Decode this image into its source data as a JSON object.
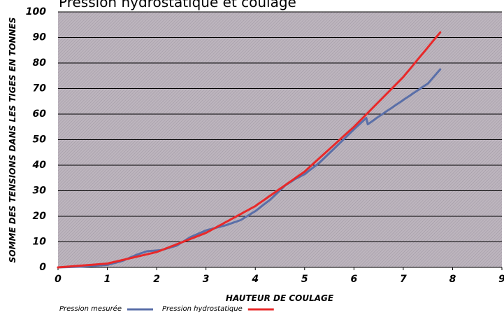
{
  "chart_data": {
    "type": "line",
    "title": "Pression hydrostatique et coulage",
    "x_label": "HAUTEUR DE COULAGE",
    "y_label": "SOMME DES TENSIONS DANS LES TIGES EN TONNES",
    "xlim": [
      0,
      9
    ],
    "ylim": [
      0,
      100
    ],
    "xticks": [
      0,
      1,
      2,
      3,
      4,
      5,
      6,
      7,
      8,
      9
    ],
    "yticks": [
      0,
      10,
      20,
      30,
      40,
      50,
      60,
      70,
      80,
      90,
      100
    ],
    "grid": true,
    "legend": "bottom",
    "series": [
      {
        "name": "Pression mesurée",
        "color": "#5a6fa8",
        "x": [
          0,
          0.5,
          1,
          1.3,
          1.6,
          1.8,
          2.1,
          2.4,
          2.7,
          3,
          3.4,
          3.7,
          4,
          4.3,
          4.6,
          4.8,
          5,
          5.3,
          5.6,
          6,
          6.25,
          6.28,
          6.5,
          7,
          7.5,
          7.75
        ],
        "values": [
          0,
          0.3,
          1,
          2.5,
          5,
          6.3,
          6.8,
          8.5,
          12,
          14.5,
          16.5,
          18.5,
          22,
          26.5,
          32,
          34.5,
          36.5,
          41,
          46.5,
          54,
          58.5,
          56,
          59,
          65.5,
          72,
          77.5
        ]
      },
      {
        "name": "Pression hydrostatique",
        "color": "#e8292a",
        "x": [
          0,
          1,
          2,
          3,
          4,
          5,
          6,
          7,
          7.75
        ],
        "values": [
          0,
          1.5,
          6,
          13.5,
          24,
          37.5,
          55,
          74.5,
          92
        ]
      }
    ]
  }
}
